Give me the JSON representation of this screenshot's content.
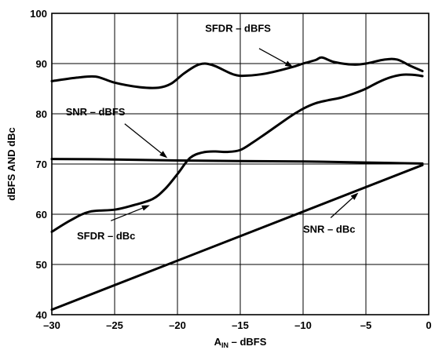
{
  "chart_data": {
    "type": "line",
    "xlabel_main": "A",
    "xlabel_sub": "IN",
    "xlabel_rest": " – dBFS",
    "ylabel": "dBFS AND dBc",
    "xlim": [
      -30,
      0
    ],
    "ylim": [
      40,
      100
    ],
    "xticks": [
      -30,
      -25,
      -20,
      -15,
      -10,
      -5,
      0
    ],
    "yticks": [
      40,
      50,
      60,
      70,
      80,
      90,
      100
    ],
    "xtick_labels": [
      "–30",
      "–25",
      "–20",
      "–15",
      "–10",
      "–5",
      "0"
    ],
    "ytick_labels": [
      "40",
      "50",
      "60",
      "70",
      "80",
      "90",
      "100"
    ],
    "grid": true,
    "series": [
      {
        "name": "SFDR – dBFS",
        "x": [
          -30,
          -28,
          -26.5,
          -25,
          -23,
          -21.5,
          -20.5,
          -19.5,
          -18.5,
          -17.8,
          -17,
          -15.5,
          -14.5,
          -13,
          -11,
          -10,
          -9,
          -8.5,
          -7.5,
          -6,
          -5,
          -3.5,
          -2.5,
          -1.5,
          -0.5
        ],
        "y": [
          86.5,
          87.2,
          87.4,
          86.2,
          85.3,
          85.2,
          86.0,
          88.0,
          89.6,
          90.0,
          89.5,
          87.8,
          87.6,
          88.0,
          89.2,
          90.0,
          90.7,
          91.2,
          90.3,
          89.8,
          90.0,
          90.8,
          90.8,
          89.6,
          88.5
        ]
      },
      {
        "name": "SFDR – dBc",
        "x": [
          -30,
          -28.5,
          -27,
          -25,
          -23.5,
          -22,
          -21,
          -20,
          -19,
          -18,
          -17,
          -16,
          -15,
          -14,
          -13,
          -11,
          -10,
          -9,
          -8,
          -7,
          -6,
          -5,
          -4,
          -3,
          -2,
          -1,
          -0.5
        ],
        "y": [
          56.5,
          58.8,
          60.5,
          60.9,
          61.8,
          63.0,
          65.0,
          68.0,
          71.2,
          72.3,
          72.5,
          72.4,
          72.8,
          74.3,
          76.0,
          79.5,
          81.0,
          82.1,
          82.7,
          83.2,
          84.0,
          85.0,
          86.3,
          87.3,
          87.8,
          87.7,
          87.5
        ]
      },
      {
        "name": "SNR – dBFS",
        "x": [
          -30,
          -25,
          -20,
          -15,
          -10,
          -5,
          -0.5
        ],
        "y": [
          71.0,
          70.9,
          70.7,
          70.6,
          70.5,
          70.3,
          70.1
        ]
      },
      {
        "name": "SNR – dBc",
        "x": [
          -30,
          -0.5
        ],
        "y": [
          41.0,
          69.8
        ]
      }
    ],
    "annotations": [
      {
        "text": "SFDR – dBFS",
        "label_x": -17.8,
        "label_y": 96.3,
        "arrow_from": [
          -13.5,
          93.0
        ],
        "arrow_to": [
          -10.8,
          89.3
        ]
      },
      {
        "text": "SNR – dBFS",
        "label_x": -28.9,
        "label_y": 79.7,
        "arrow_from": [
          -24.2,
          78.0
        ],
        "arrow_to": [
          -20.8,
          71.2
        ]
      },
      {
        "text": "SFDR – dBc",
        "label_x": -28.0,
        "label_y": 55.0,
        "arrow_from": [
          -25.3,
          58.7
        ],
        "arrow_to": [
          -22.2,
          61.8
        ]
      },
      {
        "text": "SNR – dBc",
        "label_x": -10.0,
        "label_y": 56.3,
        "arrow_from": [
          -7.8,
          59.3
        ],
        "arrow_to": [
          -5.6,
          64.3
        ]
      }
    ]
  }
}
